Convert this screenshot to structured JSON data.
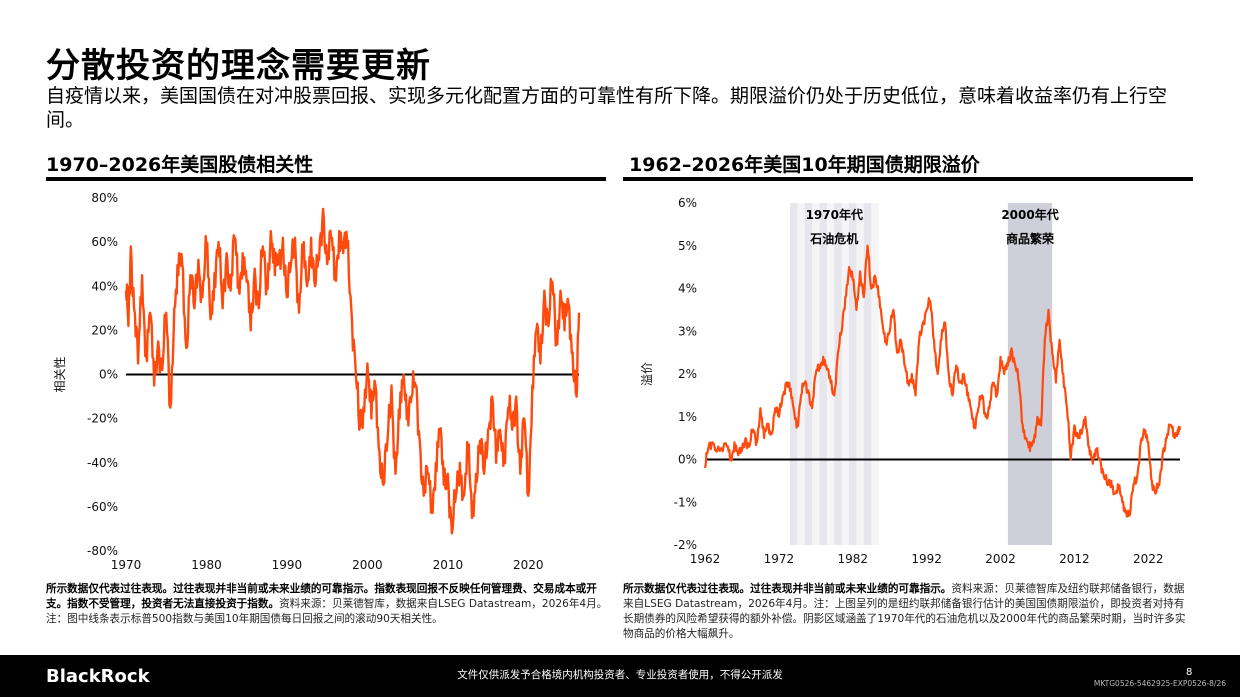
{
  "header": {
    "title": "分散投资的理念需要更新",
    "subtitle": "自疫情以来，美国国债在对冲股票回报、实现多元化配置方面的可靠性有所下降。期限溢价仍处于历史低位，意味着收益率仍有上行空间。"
  },
  "chart_data": [
    {
      "type": "line",
      "title": "1970–2026年美国股债相关性",
      "ylabel": "相关性",
      "xlabel": "",
      "xlim": [
        1970,
        2026.3
      ],
      "ylim": [
        -0.8,
        0.8
      ],
      "x_ticks": [
        1970,
        1980,
        1990,
        2000,
        2010,
        2020
      ],
      "x_tick_labels": [
        "1970",
        "1980",
        "1990",
        "2000",
        "2010",
        "2020"
      ],
      "y_ticks": [
        -0.8,
        -0.6,
        -0.4,
        -0.2,
        0,
        0.2,
        0.4,
        0.6,
        0.8
      ],
      "y_tick_labels": [
        "-80%",
        "-60%",
        "-40%",
        "-20%",
        "0%",
        "20%",
        "40%",
        "60%",
        "80%"
      ],
      "color": "#ff4a0d",
      "series": [
        {
          "x": [
            1970.0,
            1970.3,
            1970.6,
            1971.0,
            1971.5,
            1972.0,
            1972.5,
            1973.0,
            1973.5,
            1974.0,
            1974.5,
            1975.0,
            1975.5,
            1976.0,
            1976.5,
            1977.0,
            1977.5,
            1978.0,
            1978.5,
            1979.0,
            1979.5,
            1980.0,
            1980.5,
            1981.0,
            1981.5,
            1982.0,
            1982.5,
            1983.0,
            1983.5,
            1984.0,
            1984.5,
            1985.0,
            1985.5,
            1986.0,
            1986.5,
            1987.0,
            1987.5,
            1988.0,
            1988.5,
            1989.0,
            1989.5,
            1990.0,
            1990.5,
            1991.0,
            1991.5,
            1992.0,
            1992.5,
            1993.0,
            1993.5,
            1994.0,
            1994.5,
            1995.0,
            1995.5,
            1996.0,
            1996.5,
            1997.0,
            1997.5,
            1998.0,
            1998.5,
            1999.0,
            1999.5,
            2000.0,
            2000.5,
            2001.0,
            2001.5,
            2002.0,
            2002.5,
            2003.0,
            2003.5,
            2004.0,
            2004.5,
            2005.0,
            2005.5,
            2006.0,
            2006.5,
            2007.0,
            2007.5,
            2008.0,
            2008.5,
            2009.0,
            2009.5,
            2010.0,
            2010.5,
            2011.0,
            2011.5,
            2012.0,
            2012.5,
            2013.0,
            2013.5,
            2014.0,
            2014.5,
            2015.0,
            2015.5,
            2016.0,
            2016.5,
            2017.0,
            2017.5,
            2018.0,
            2018.5,
            2019.0,
            2019.5,
            2020.0,
            2020.5,
            2021.0,
            2021.5,
            2022.0,
            2022.5,
            2023.0,
            2023.5,
            2024.0,
            2024.5,
            2025.0,
            2025.5,
            2026.0,
            2026.3
          ],
          "values": [
            0.38,
            0.22,
            0.58,
            0.3,
            0.05,
            0.45,
            0.1,
            0.28,
            -0.05,
            0.15,
            0.02,
            0.28,
            -0.15,
            0.3,
            0.45,
            0.5,
            0.12,
            0.45,
            0.3,
            0.52,
            0.35,
            0.58,
            0.25,
            0.46,
            0.6,
            0.3,
            0.55,
            0.38,
            0.62,
            0.4,
            0.55,
            0.42,
            0.2,
            0.48,
            0.3,
            0.58,
            0.4,
            0.65,
            0.45,
            0.5,
            0.62,
            0.35,
            0.5,
            0.62,
            0.28,
            0.55,
            0.4,
            0.62,
            0.4,
            0.52,
            0.75,
            0.5,
            0.62,
            0.45,
            0.65,
            0.55,
            0.6,
            0.3,
            0.05,
            -0.25,
            -0.15,
            0.05,
            -0.2,
            -0.05,
            -0.35,
            -0.5,
            -0.3,
            -0.05,
            -0.45,
            -0.2,
            0.0,
            -0.15,
            -0.1,
            -0.05,
            -0.3,
            -0.55,
            -0.45,
            -0.6,
            -0.4,
            -0.25,
            -0.5,
            -0.45,
            -0.72,
            -0.55,
            -0.4,
            -0.55,
            -0.35,
            -0.65,
            -0.45,
            -0.3,
            -0.45,
            -0.25,
            -0.1,
            -0.4,
            -0.25,
            -0.35,
            -0.15,
            -0.25,
            -0.1,
            -0.45,
            -0.2,
            -0.55,
            -0.05,
            0.2,
            0.05,
            0.38,
            0.22,
            0.42,
            0.15,
            0.38,
            0.2,
            0.32,
            0.1,
            -0.1,
            0.28
          ]
        }
      ],
      "annotations": []
    },
    {
      "type": "line",
      "title": "1962–2026年美国10年期国债期限溢价",
      "ylabel": "溢价",
      "xlabel": "",
      "xlim": [
        1962,
        2026.3
      ],
      "ylim": [
        -0.02,
        0.06
      ],
      "x_ticks": [
        1962,
        1972,
        1982,
        1992,
        2002,
        2012,
        2022
      ],
      "x_tick_labels": [
        "1962",
        "1972",
        "1982",
        "1992",
        "2002",
        "2012",
        "2022"
      ],
      "y_ticks": [
        -0.02,
        -0.01,
        0,
        0.01,
        0.02,
        0.03,
        0.04,
        0.05,
        0.06
      ],
      "y_tick_labels": [
        "-2%",
        "-1%",
        "0%",
        "1%",
        "2%",
        "3%",
        "4%",
        "5%",
        "6%"
      ],
      "color": "#ff4a0d",
      "shaded_regions": [
        {
          "label": [
            "1970年代",
            "石油危机"
          ],
          "x_range": [
            1973.5,
            1985.5
          ],
          "color": "#e6e6ec",
          "style": "striped"
        },
        {
          "label": [
            "2000年代",
            "商品繁荣"
          ],
          "x_range": [
            2003,
            2009
          ],
          "color": "#cfcfd9",
          "style": "solid"
        }
      ],
      "series": [
        {
          "x": [
            1962.0,
            1962.5,
            1963.0,
            1964.0,
            1965.0,
            1965.5,
            1966.0,
            1966.5,
            1967.0,
            1967.5,
            1968.0,
            1968.5,
            1969.0,
            1969.5,
            1970.0,
            1970.5,
            1971.0,
            1971.5,
            1972.0,
            1972.5,
            1973.0,
            1973.5,
            1974.0,
            1974.5,
            1975.0,
            1975.5,
            1976.0,
            1976.5,
            1977.0,
            1977.5,
            1978.0,
            1978.5,
            1979.0,
            1979.5,
            1980.0,
            1980.5,
            1981.0,
            1981.5,
            1982.0,
            1982.5,
            1983.0,
            1983.5,
            1984.0,
            1984.5,
            1985.0,
            1985.5,
            1986.0,
            1986.5,
            1987.0,
            1987.5,
            1988.0,
            1988.5,
            1989.0,
            1989.5,
            1990.0,
            1990.5,
            1991.0,
            1991.5,
            1992.0,
            1992.5,
            1993.0,
            1993.5,
            1994.0,
            1994.5,
            1995.0,
            1995.5,
            1996.0,
            1996.5,
            1997.0,
            1997.5,
            1998.0,
            1998.5,
            1999.0,
            1999.5,
            2000.0,
            2000.5,
            2001.0,
            2001.5,
            2002.0,
            2002.5,
            2003.0,
            2003.5,
            2004.0,
            2004.5,
            2005.0,
            2005.5,
            2006.0,
            2006.5,
            2007.0,
            2007.5,
            2008.0,
            2008.5,
            2009.0,
            2009.5,
            2010.0,
            2010.5,
            2011.0,
            2011.5,
            2012.0,
            2012.5,
            2013.0,
            2013.5,
            2014.0,
            2014.5,
            2015.0,
            2015.5,
            2016.0,
            2016.5,
            2017.0,
            2017.5,
            2018.0,
            2018.5,
            2019.0,
            2019.5,
            2020.0,
            2020.5,
            2021.0,
            2021.5,
            2022.0,
            2022.5,
            2023.0,
            2023.5,
            2024.0,
            2024.5,
            2025.0,
            2025.5,
            2026.0,
            2026.3
          ],
          "values": [
            -0.002,
            0.003,
            0.004,
            0.002,
            0.003,
            0.0,
            0.004,
            0.001,
            0.002,
            0.005,
            0.003,
            0.007,
            0.004,
            0.012,
            0.005,
            0.008,
            0.006,
            0.012,
            0.01,
            0.015,
            0.018,
            0.016,
            0.012,
            0.008,
            0.015,
            0.018,
            0.016,
            0.012,
            0.02,
            0.022,
            0.024,
            0.021,
            0.018,
            0.015,
            0.025,
            0.03,
            0.038,
            0.045,
            0.042,
            0.035,
            0.044,
            0.038,
            0.05,
            0.04,
            0.043,
            0.038,
            0.032,
            0.028,
            0.03,
            0.035,
            0.025,
            0.028,
            0.022,
            0.018,
            0.02,
            0.015,
            0.028,
            0.032,
            0.035,
            0.037,
            0.028,
            0.02,
            0.028,
            0.032,
            0.02,
            0.015,
            0.022,
            0.018,
            0.02,
            0.015,
            0.012,
            0.008,
            0.012,
            0.015,
            0.01,
            0.012,
            0.018,
            0.015,
            0.024,
            0.02,
            0.022,
            0.026,
            0.022,
            0.018,
            0.008,
            0.005,
            0.002,
            0.004,
            0.01,
            0.008,
            0.028,
            0.035,
            0.025,
            0.018,
            0.028,
            0.02,
            0.012,
            0.0,
            0.008,
            0.005,
            0.006,
            0.01,
            0.003,
            -0.001,
            0.002,
            0.0,
            -0.004,
            -0.006,
            -0.005,
            -0.008,
            -0.007,
            -0.01,
            -0.012,
            -0.013,
            -0.006,
            -0.004,
            0.004,
            0.006,
            0.004,
            -0.005,
            -0.008,
            -0.006,
            0.002,
            0.005,
            0.008,
            0.006,
            0.007,
            0.007
          ]
        }
      ]
    }
  ],
  "notes": {
    "left_bold": "所示数据仅代表过往表现。过往表现并非当前或未来业绩的可靠指示。指数表现回报不反映任何管理费、交易成本或开支。指数不受管理，投资者无法直接投资于指数。",
    "left_regular": "资料来源：贝莱德智库，数据来自LSEG Datastream，2026年4月。注：图中线条表示标普500指数与美国10年期国债每日回报之间的滚动90天相关性。",
    "right_bold": "所示数据仅代表过往表现。过往表现并非当前或未来业绩的可靠指示。",
    "right_regular": "资料来源：贝莱德智库及纽约联邦储备银行，数据来自LSEG Datastream，2026年4月。注：上图呈列的是纽约联邦储备银行估计的美国国债期限溢价，即投资者对持有长期债券的风险希望获得的额外补偿。阴影区域涵盖了1970年代的石油危机以及2000年代的商品繁荣时期，当时许多实物商品的价格大幅飙升。"
  },
  "footer": {
    "logo": "BlackRock",
    "disclaimer": "文件仅供派发予合格境内机构投资者、专业投资者使用，不得公开派发",
    "page": "8",
    "code": "MKTG0526-5462925-EXP0526-8/26"
  }
}
